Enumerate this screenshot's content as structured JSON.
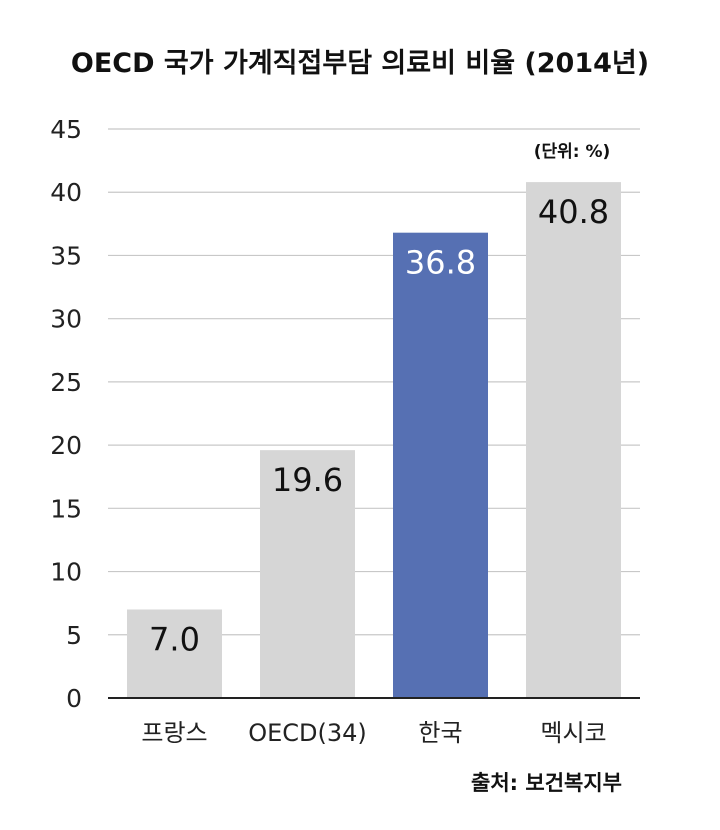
{
  "chart_data": {
    "type": "bar",
    "title": "OECD 국가 가계직접부담 의료비 비율 (2014년)",
    "unit_note": "(단위: %)",
    "source": "출처: 보건복지부",
    "categories": [
      "프랑스",
      "OECD(34)",
      "한국",
      "멕시코"
    ],
    "values": [
      7.0,
      19.6,
      36.8,
      40.8
    ],
    "data_labels": [
      "7.0",
      "19.6",
      "36.8",
      "40.8"
    ],
    "ylim": [
      0,
      45
    ],
    "yticks": [
      0,
      5,
      10,
      15,
      20,
      25,
      30,
      35,
      40,
      45
    ],
    "grid": true,
    "highlight_index": 2,
    "colors": {
      "bar": "#d6d6d6",
      "highlight": "#5670b3",
      "label": "#111111",
      "highlight_label": "#ffffff"
    }
  }
}
